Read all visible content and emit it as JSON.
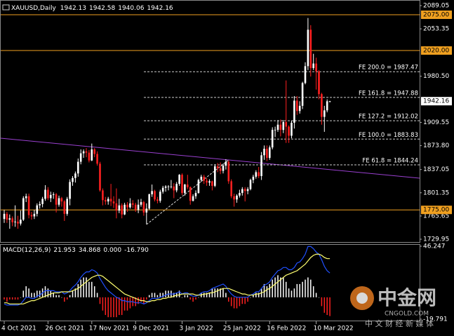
{
  "chart_data": [
    {
      "type": "candlestick",
      "title": "XAUUSD,Daily",
      "header_values": [
        1942.13,
        1942.58,
        1940.06,
        1942.16
      ],
      "color_up": "#ffffff",
      "color_down": "#ff2020",
      "ylim": [
        1729.95,
        2089.05
      ],
      "yticks": [
        2089.05,
        2053.35,
        {
          "value": 1980.5,
          "label": "1980.50"
        },
        1909.55,
        {
          "value": 1873.8,
          "label": "1873.80"
        },
        1837.05,
        1801.35,
        1765.65,
        1729.95
      ],
      "xticks": [
        {
          "value": 0,
          "label": "4 Oct 2021"
        },
        {
          "value": 16,
          "label": "26 Oct 2021"
        },
        {
          "value": 32,
          "label": "17 Nov 2021"
        },
        {
          "value": 48,
          "label": "9 Dec 2021"
        },
        {
          "value": 65,
          "label": "3 Jan 2022"
        },
        {
          "value": 81,
          "label": "25 Jan 2022"
        },
        {
          "value": 97,
          "label": "16 Feb 2022"
        },
        {
          "value": 114,
          "label": "10 Mar 2022"
        }
      ],
      "levels": [
        {
          "value": 2075,
          "label": "2075.00"
        },
        {
          "value": 2020,
          "label": "2020.00"
        },
        {
          "value": 1775,
          "label": "1775.00"
        }
      ],
      "level_color": "#f0a020",
      "fe_levels": [
        {
          "value": 1987.47,
          "label": "FE 200.0 = 1987.47"
        },
        {
          "value": 1947.88,
          "label": "FE 161.8 = 1947.88"
        },
        {
          "value": 1912.02,
          "label": "FE 127.2 = 1912.02"
        },
        {
          "value": 1883.83,
          "label": "FE 100.0 = 1883.83"
        },
        {
          "value": 1844.24,
          "label": "FE 61.8 = 1844.24"
        }
      ],
      "trendline": {
        "color": "#9a40d0",
        "values": [
          1885.2,
          1823.8
        ]
      },
      "wave": {
        "x": [
          52,
          82
        ],
        "values": [
          1752.6,
          1851.8
        ]
      },
      "candles": [
        [
          1761,
          1775,
          1755,
          1769
        ],
        [
          1769,
          1772,
          1755,
          1760
        ],
        [
          1760,
          1768,
          1746,
          1762
        ],
        [
          1762,
          1765,
          1750,
          1756
        ],
        [
          1756,
          1782,
          1749,
          1757
        ],
        [
          1757,
          1766,
          1746,
          1754
        ],
        [
          1754,
          1774,
          1751,
          1760
        ],
        [
          1760,
          1796,
          1758,
          1793
        ],
        [
          1793,
          1800,
          1787,
          1796
        ],
        [
          1796,
          1800,
          1762,
          1767
        ],
        [
          1767,
          1772,
          1760,
          1765
        ],
        [
          1765,
          1775,
          1761,
          1769
        ],
        [
          1769,
          1785,
          1765,
          1782
        ],
        [
          1782,
          1788,
          1777,
          1784
        ],
        [
          1784,
          1795,
          1779,
          1792
        ],
        [
          1792,
          1813,
          1789,
          1806
        ],
        [
          1806,
          1810,
          1790,
          1793
        ],
        [
          1793,
          1803,
          1787,
          1798
        ],
        [
          1798,
          1802,
          1792,
          1799
        ],
        [
          1799,
          1801,
          1771,
          1783
        ],
        [
          1783,
          1797,
          1780,
          1793
        ],
        [
          1793,
          1795,
          1780,
          1788
        ],
        [
          1788,
          1790,
          1758,
          1769
        ],
        [
          1769,
          1795,
          1766,
          1792
        ],
        [
          1792,
          1822,
          1782,
          1818
        ],
        [
          1818,
          1827,
          1812,
          1824
        ],
        [
          1824,
          1834,
          1817,
          1831
        ],
        [
          1831,
          1854,
          1826,
          1849
        ],
        [
          1849,
          1868,
          1845,
          1862
        ],
        [
          1862,
          1868,
          1855,
          1865
        ],
        [
          1865,
          1870,
          1856,
          1863
        ],
        [
          1863,
          1867,
          1848,
          1851
        ],
        [
          1851,
          1877,
          1850,
          1868
        ],
        [
          1868,
          1870,
          1856,
          1861
        ],
        [
          1861,
          1865,
          1843,
          1846
        ],
        [
          1846,
          1849,
          1803,
          1805
        ],
        [
          1805,
          1808,
          1782,
          1790
        ],
        [
          1790,
          1795,
          1783,
          1788
        ],
        [
          1788,
          1795,
          1783,
          1792
        ],
        [
          1792,
          1815,
          1781,
          1788
        ],
        [
          1788,
          1796,
          1778,
          1785
        ],
        [
          1785,
          1808,
          1762,
          1774
        ],
        [
          1774,
          1792,
          1770,
          1782
        ],
        [
          1782,
          1785,
          1762,
          1768
        ],
        [
          1768,
          1786,
          1767,
          1783
        ],
        [
          1783,
          1787,
          1772,
          1779
        ],
        [
          1779,
          1793,
          1777,
          1785
        ],
        [
          1785,
          1790,
          1778,
          1783
        ],
        [
          1783,
          1786,
          1772,
          1775
        ],
        [
          1775,
          1791,
          1770,
          1783
        ],
        [
          1783,
          1792,
          1780,
          1787
        ],
        [
          1787,
          1789,
          1766,
          1771
        ],
        [
          1771,
          1785,
          1753,
          1777
        ],
        [
          1777,
          1800,
          1775,
          1799
        ],
        [
          1799,
          1814,
          1795,
          1804
        ],
        [
          1804,
          1806,
          1788,
          1791
        ],
        [
          1791,
          1795,
          1785,
          1789
        ],
        [
          1789,
          1806,
          1786,
          1803
        ],
        [
          1803,
          1812,
          1800,
          1809
        ],
        [
          1809,
          1813,
          1803,
          1811
        ],
        [
          1811,
          1813,
          1805,
          1811
        ],
        [
          1811,
          1821,
          1808,
          1811
        ],
        [
          1811,
          1816,
          1793,
          1805
        ],
        [
          1805,
          1818,
          1802,
          1815
        ],
        [
          1815,
          1830,
          1812,
          1829
        ],
        [
          1829,
          1831,
          1798,
          1801
        ],
        [
          1801,
          1815,
          1797,
          1814
        ],
        [
          1814,
          1829,
          1807,
          1810
        ],
        [
          1810,
          1811,
          1783,
          1789
        ],
        [
          1789,
          1799,
          1788,
          1796
        ],
        [
          1796,
          1805,
          1792,
          1801
        ],
        [
          1801,
          1823,
          1800,
          1821
        ],
        [
          1821,
          1829,
          1818,
          1826
        ],
        [
          1826,
          1829,
          1815,
          1820
        ],
        [
          1820,
          1824,
          1812,
          1817
        ],
        [
          1817,
          1822,
          1812,
          1819
        ],
        [
          1819,
          1820,
          1805,
          1812
        ],
        [
          1812,
          1845,
          1810,
          1842
        ],
        [
          1842,
          1847,
          1833,
          1839
        ],
        [
          1839,
          1848,
          1830,
          1835
        ],
        [
          1835,
          1846,
          1831,
          1843
        ],
        [
          1843,
          1853,
          1837,
          1849
        ],
        [
          1849,
          1851,
          1815,
          1819
        ],
        [
          1819,
          1822,
          1793,
          1796
        ],
        [
          1796,
          1800,
          1780,
          1791
        ],
        [
          1791,
          1799,
          1786,
          1797
        ],
        [
          1797,
          1806,
          1794,
          1801
        ],
        [
          1801,
          1810,
          1797,
          1807
        ],
        [
          1807,
          1810,
          1788,
          1804
        ],
        [
          1804,
          1810,
          1799,
          1807
        ],
        [
          1807,
          1823,
          1805,
          1821
        ],
        [
          1821,
          1829,
          1816,
          1826
        ],
        [
          1826,
          1836,
          1823,
          1833
        ],
        [
          1833,
          1841,
          1824,
          1827
        ],
        [
          1827,
          1864,
          1821,
          1859
        ],
        [
          1859,
          1874,
          1852,
          1869
        ],
        [
          1869,
          1874,
          1850,
          1855
        ],
        [
          1855,
          1874,
          1852,
          1871
        ],
        [
          1871,
          1902,
          1868,
          1898
        ],
        [
          1898,
          1903,
          1887,
          1898
        ],
        [
          1898,
          1913,
          1895,
          1906
        ],
        [
          1906,
          1914,
          1888,
          1898
        ],
        [
          1898,
          1913,
          1893,
          1910
        ],
        [
          1910,
          1974,
          1878,
          1903
        ],
        [
          1903,
          1905,
          1878,
          1889
        ],
        [
          1889,
          1912,
          1885,
          1909
        ],
        [
          1909,
          1950,
          1900,
          1943
        ],
        [
          1943,
          1950,
          1921,
          1927
        ],
        [
          1927,
          1942,
          1923,
          1935
        ],
        [
          1935,
          1972,
          1930,
          1970
        ],
        [
          1970,
          2002,
          1968,
          1996
        ],
        [
          1996,
          2070,
          1990,
          2052
        ],
        [
          2052,
          2059,
          1980,
          1993
        ],
        [
          1993,
          2015,
          1990,
          2000
        ],
        [
          2000,
          2009,
          1960,
          1988
        ],
        [
          1988,
          1990,
          1945,
          1953
        ],
        [
          1953,
          1955,
          1906,
          1918
        ],
        [
          1918,
          1935,
          1895,
          1928
        ],
        [
          1928,
          1945,
          1925,
          1942
        ],
        [
          1942.13,
          1942.58,
          1940.06,
          1942.16
        ]
      ]
    },
    {
      "type": "macd",
      "title": "MACD(12,26,9)",
      "header_values": [
        21.953,
        34.868,
        {
          "value": 0,
          "label": "0.000"
        },
        {
          "value": -16.79,
          "label": "-16.790"
        }
      ],
      "ylim": [
        -19.791,
        46.247
      ],
      "yticks": [
        46.247,
        -19.791
      ],
      "color_up": "#ffffff",
      "color_down": "#ff2020",
      "histogram": [
        -2,
        -4,
        -2,
        -2,
        -2,
        -2,
        0,
        6,
        10,
        8,
        4,
        4,
        6,
        6,
        8,
        10,
        8,
        6,
        4,
        2,
        2,
        0,
        -4,
        -2,
        2,
        6,
        8,
        12,
        16,
        18,
        18,
        14,
        14,
        10,
        4,
        -6,
        -12,
        -16,
        -18,
        -18,
        -18,
        -18,
        -16,
        -16,
        -12,
        -12,
        -10,
        -8,
        -8,
        -6,
        -4,
        -6,
        -2,
        2,
        4,
        4,
        2,
        4,
        4,
        6,
        6,
        6,
        4,
        4,
        6,
        0,
        2,
        2,
        -2,
        -4,
        -2,
        0,
        4,
        4,
        4,
        4,
        8,
        8,
        8,
        8,
        8,
        4,
        -4,
        -8,
        -10,
        -10,
        -8,
        -6,
        -6,
        -4,
        0,
        2,
        4,
        4,
        8,
        12,
        10,
        12,
        16,
        18,
        20,
        18,
        18,
        14,
        8,
        6,
        8,
        12,
        12,
        14,
        16,
        18,
        16,
        10,
        4,
        0,
        -8,
        -14,
        -16,
        -17
      ],
      "main": {
        "color": "#2050ff",
        "values": [
          -6,
          -7,
          -7,
          -7,
          -7,
          -7,
          -6,
          -3,
          0,
          0,
          -1,
          -1,
          1,
          2,
          4,
          6,
          6,
          6,
          6,
          5,
          5,
          5,
          3,
          4,
          6,
          9,
          11,
          14,
          18,
          21,
          23,
          23,
          25,
          24,
          22,
          17,
          13,
          9,
          6,
          4,
          2,
          0,
          -1,
          -3,
          -3,
          -4,
          -4,
          -4,
          -5,
          -5,
          -5,
          -6,
          -5,
          -3,
          -1,
          -1,
          -1,
          0,
          1,
          2,
          3,
          3,
          3,
          4,
          5,
          3,
          4,
          4,
          2,
          1,
          1,
          2,
          4,
          5,
          5,
          6,
          8,
          9,
          10,
          11,
          12,
          10,
          6,
          3,
          1,
          0,
          0,
          0,
          0,
          0,
          2,
          3,
          5,
          5,
          8,
          11,
          12,
          14,
          18,
          21,
          24,
          25,
          27,
          27,
          25,
          25,
          27,
          31,
          32,
          35,
          39,
          46,
          46,
          44,
          41,
          39,
          34,
          28,
          24,
          22
        ]
      },
      "signal": {
        "color": "#ffff70",
        "values": [
          -5,
          -5,
          -6,
          -6,
          -6,
          -6,
          -6,
          -6,
          -5,
          -4,
          -3,
          -3,
          -2,
          -1,
          0,
          1,
          2,
          3,
          4,
          4,
          4,
          5,
          5,
          5,
          5,
          6,
          7,
          8,
          10,
          12,
          14,
          16,
          18,
          19,
          20,
          20,
          19,
          17,
          15,
          13,
          11,
          9,
          7,
          5,
          3,
          2,
          1,
          0,
          -1,
          -2,
          -3,
          -3,
          -4,
          -4,
          -3,
          -3,
          -2,
          -2,
          -1,
          -1,
          0,
          0,
          1,
          2,
          2,
          3,
          3,
          3,
          3,
          3,
          2,
          2,
          2,
          3,
          3,
          4,
          4,
          5,
          6,
          7,
          8,
          8,
          8,
          7,
          6,
          5,
          4,
          3,
          3,
          2,
          2,
          2,
          3,
          3,
          4,
          5,
          7,
          8,
          10,
          12,
          14,
          16,
          18,
          20,
          21,
          22,
          23,
          24,
          26,
          28,
          30,
          33,
          36,
          38,
          39,
          39,
          38,
          36,
          35,
          35
        ]
      }
    }
  ],
  "watermark": {
    "title": "中金网",
    "site": "CNGOLD.COM",
    "tagline": "中 文 财 经 新 媒 体"
  }
}
